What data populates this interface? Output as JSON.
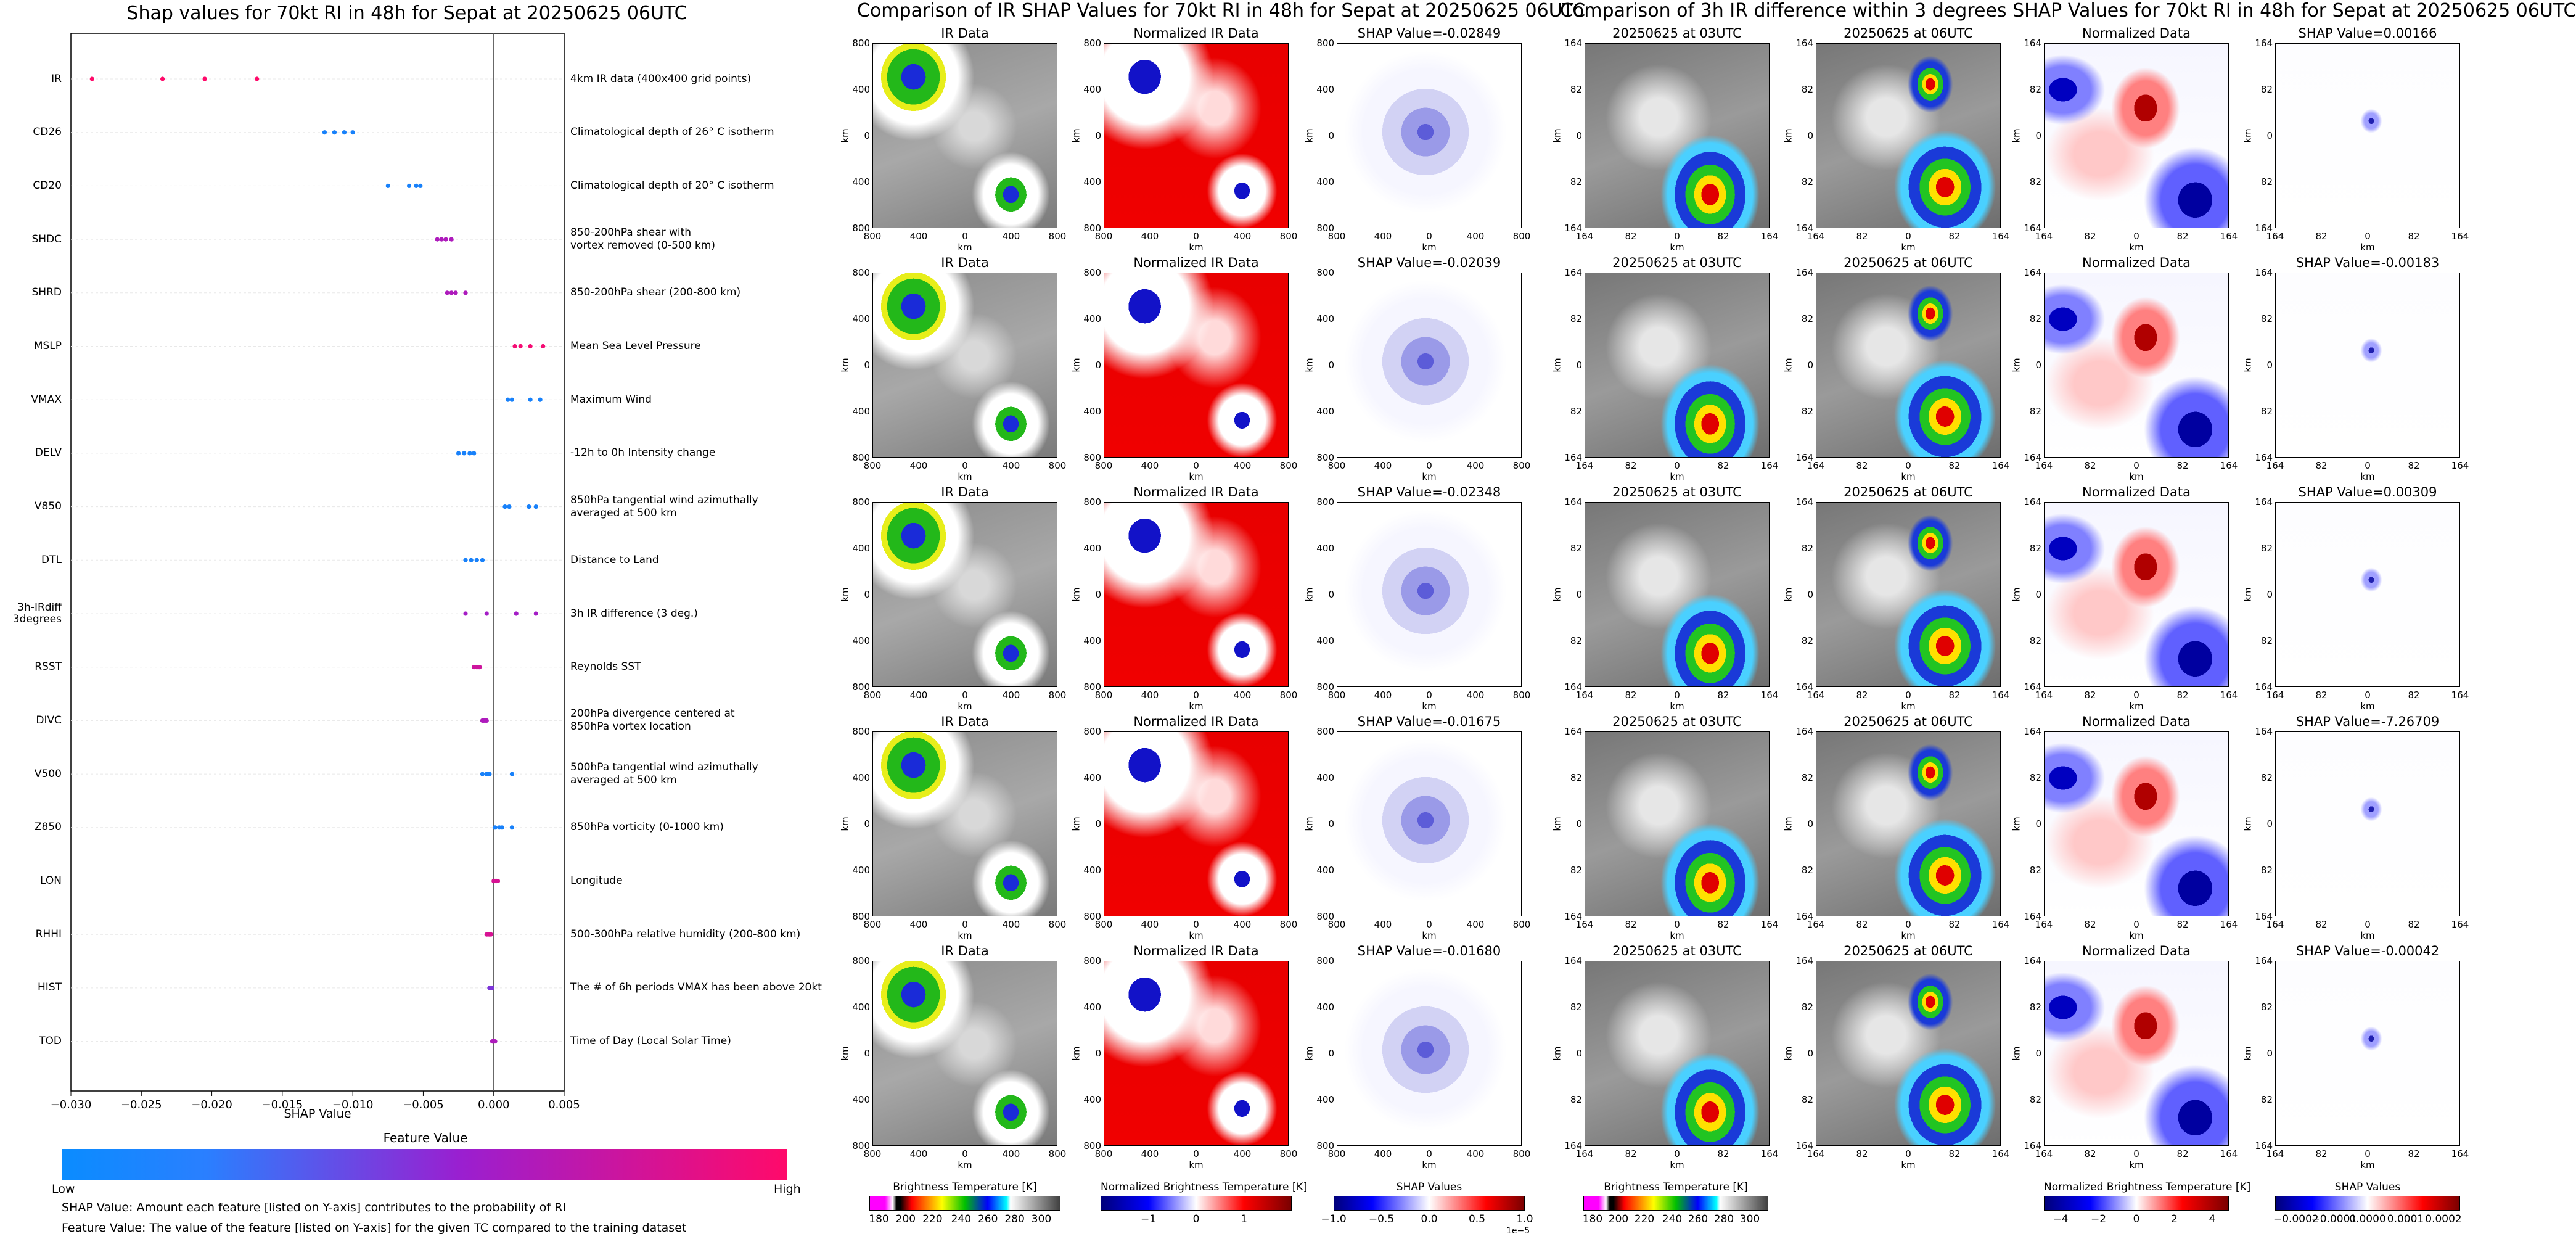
{
  "summary": {
    "title": "Shap values for 70kt RI in 48h for Sepat at 20250625 06UTC",
    "xlabel": "SHAP Value",
    "xticks": [
      "−0.030",
      "−0.025",
      "−0.020",
      "−0.015",
      "−0.010",
      "−0.005",
      "0.000",
      "0.005"
    ],
    "colorbar_title": "Feature Value",
    "low": "Low",
    "high": "High",
    "note1": "SHAP Value: Amount each feature [listed on Y-axis] contributes to the probability of RI",
    "note2": "Feature Value: The value of the feature [listed on Y-axis] for the given TC compared to the training dataset"
  },
  "chart_data": {
    "type": "scatter",
    "title": "Shap values for 70kt RI in 48h for Sepat at 20250625 06UTC",
    "xlabel": "SHAP Value",
    "xlim": [
      -0.03,
      0.005
    ],
    "legend": "bottom colorbar",
    "color_scale": [
      "#0a8cff",
      "#9a1fd0",
      "#ff0a6a"
    ],
    "features": [
      {
        "name": "IR",
        "desc": "4km IR data (400x400 grid points)",
        "values": [
          -0.0285,
          -0.0235,
          -0.0205,
          -0.0168
        ],
        "fv": [
          1,
          1,
          1,
          1
        ]
      },
      {
        "name": "CD26",
        "desc": "Climatological depth of 26° C isotherm",
        "values": [
          -0.012,
          -0.0113,
          -0.0106,
          -0.01
        ],
        "fv": [
          0.05,
          0.05,
          0.05,
          0.05
        ]
      },
      {
        "name": "CD20",
        "desc": "Climatological depth of 20° C isotherm",
        "values": [
          -0.0075,
          -0.006,
          -0.0055,
          -0.0052
        ],
        "fv": [
          0.05,
          0.05,
          0.05,
          0.05
        ]
      },
      {
        "name": "SHDC",
        "desc": "850-200hPa shear with\nvortex removed (0-500 km)",
        "values": [
          -0.004,
          -0.0037,
          -0.0034,
          -0.003
        ],
        "fv": [
          0.6,
          0.6,
          0.6,
          0.6
        ]
      },
      {
        "name": "SHRD",
        "desc": "850-200hPa shear (200-800 km)",
        "values": [
          -0.0033,
          -0.003,
          -0.0027,
          -0.002
        ],
        "fv": [
          0.6,
          0.6,
          0.6,
          0.6
        ]
      },
      {
        "name": "MSLP",
        "desc": "Mean Sea Level Pressure",
        "values": [
          0.0015,
          0.0019,
          0.0026,
          0.0035
        ],
        "fv": [
          0.95,
          0.95,
          0.95,
          0.95
        ]
      },
      {
        "name": "VMAX",
        "desc": "Maximum Wind",
        "values": [
          0.001,
          0.0013,
          0.0026,
          0.0033
        ],
        "fv": [
          0.05,
          0.05,
          0.05,
          0.05
        ]
      },
      {
        "name": "DELV",
        "desc": "-12h to 0h Intensity change",
        "values": [
          -0.0025,
          -0.0021,
          -0.0017,
          -0.0014
        ],
        "fv": [
          0.05,
          0.05,
          0.05,
          0.05
        ]
      },
      {
        "name": "V850",
        "desc": "850hPa tangential wind azimuthally\naveraged at 500 km",
        "values": [
          0.0008,
          0.0011,
          0.0025,
          0.003
        ],
        "fv": [
          0.05,
          0.05,
          0.05,
          0.05
        ]
      },
      {
        "name": "DTL",
        "desc": "Distance to Land",
        "values": [
          -0.002,
          -0.0016,
          -0.0012,
          -0.0008
        ],
        "fv": [
          0.05,
          0.05,
          0.05,
          0.05
        ]
      },
      {
        "name": "3h-IRdiff\n3degrees",
        "desc": "3h IR difference (3 deg.)",
        "values": [
          -0.002,
          -0.0005,
          0.0016,
          0.003
        ],
        "fv": [
          0.55,
          0.55,
          0.55,
          0.55
        ]
      },
      {
        "name": "RSST",
        "desc": "Reynolds SST",
        "values": [
          -0.0014,
          -0.0012,
          -0.0011,
          -0.001
        ],
        "fv": [
          0.75,
          0.75,
          0.75,
          0.75
        ]
      },
      {
        "name": "DIVC",
        "desc": "200hPa divergence centered at\n850hPa vortex location",
        "values": [
          -0.0008,
          -0.0007,
          -0.0006,
          -0.0005
        ],
        "fv": [
          0.6,
          0.6,
          0.6,
          0.6
        ]
      },
      {
        "name": "V500",
        "desc": "500hPa tangential wind azimuthally\naveraged at 500 km",
        "values": [
          -0.0008,
          -0.0005,
          -0.0003,
          0.0013
        ],
        "fv": [
          0.05,
          0.05,
          0.05,
          0.05
        ]
      },
      {
        "name": "Z850",
        "desc": "850hPa vorticity (0-1000 km)",
        "values": [
          0.0001,
          0.0004,
          0.0006,
          0.0013
        ],
        "fv": [
          0.05,
          0.05,
          0.05,
          0.05
        ]
      },
      {
        "name": "LON",
        "desc": "Longitude",
        "values": [
          0.0,
          0.0001,
          0.0002,
          0.0003
        ],
        "fv": [
          0.8,
          0.8,
          0.8,
          0.8
        ]
      },
      {
        "name": "RHHI",
        "desc": "500-300hPa relative humidity (200-800 km)",
        "values": [
          -0.0005,
          -0.0004,
          -0.0003,
          -0.0002
        ],
        "fv": [
          0.8,
          0.8,
          0.8,
          0.8
        ]
      },
      {
        "name": "HIST",
        "desc": "The # of 6h periods VMAX has been above 20kt",
        "values": [
          -0.0003,
          -0.0002,
          -0.0002,
          -0.0001
        ],
        "fv": [
          0.4,
          0.4,
          0.4,
          0.4
        ]
      },
      {
        "name": "TOD",
        "desc": "Time of Day (Local Solar Time)",
        "values": [
          -0.0001,
          0.0,
          0.0,
          0.0001
        ],
        "fv": [
          0.6,
          0.6,
          0.6,
          0.6
        ]
      }
    ]
  },
  "ir_grid": {
    "title": "Comparison of IR SHAP Values for 70kt RI in 48h for Sepat at 20250625 06UTC",
    "col_titles": [
      "IR Data",
      "Normalized IR Data"
    ],
    "shap_values": [
      "SHAP Value=-0.02849",
      "SHAP Value=-0.02039",
      "SHAP Value=-0.02348",
      "SHAP Value=-0.01675",
      "SHAP Value=-0.01680"
    ],
    "yticks": [
      "800",
      "400",
      "0",
      "400",
      "800"
    ],
    "xticks": [
      "800",
      "400",
      "0",
      "400",
      "800"
    ],
    "unit": "km",
    "colorbars": [
      {
        "label": "Brightness Temperature [K]",
        "ticks": [
          "180",
          "200",
          "220",
          "240",
          "260",
          "280",
          "300"
        ]
      },
      {
        "label": "Normalized Brightness Temperature [K]",
        "ticks": [
          "−1",
          "0",
          "1"
        ]
      },
      {
        "label": "SHAP Values",
        "ticks": [
          "−1.0",
          "−0.5",
          "0.0",
          "0.5",
          "1.0"
        ],
        "offset": "1e−5"
      }
    ]
  },
  "diff_grid": {
    "title": "Comparison of 3h IR difference within 3 degrees SHAP Values for 70kt RI in 48h for Sepat at 20250625 06UTC",
    "col_titles": [
      "20250625 at 03UTC",
      "20250625 at 06UTC",
      "Normalized Data"
    ],
    "shap_values": [
      "SHAP Value=0.00166",
      "SHAP Value=-0.00183",
      "SHAP Value=0.00309",
      "SHAP Value=-7.26709",
      "SHAP Value=-0.00042"
    ],
    "yticks": [
      "164",
      "82",
      "0",
      "82",
      "164"
    ],
    "xticks": [
      "164",
      "82",
      "0",
      "82",
      "164"
    ],
    "unit": "km",
    "colorbars": [
      {
        "label": "Brightness Temperature [K]",
        "ticks": [
          "180",
          "200",
          "220",
          "240",
          "260",
          "280",
          "300"
        ]
      },
      {
        "label": "Normalized Brightness Temperature [K]",
        "ticks": [
          "−4",
          "−2",
          "0",
          "2",
          "4"
        ]
      },
      {
        "label": "SHAP Values",
        "ticks": [
          "−0.0002",
          "−0.0001",
          "0.0000",
          "0.0001",
          "0.0002"
        ]
      }
    ]
  },
  "colors": {
    "low": "#0a8cff",
    "mid": "#9a1fd0",
    "high": "#ff0a6a"
  }
}
